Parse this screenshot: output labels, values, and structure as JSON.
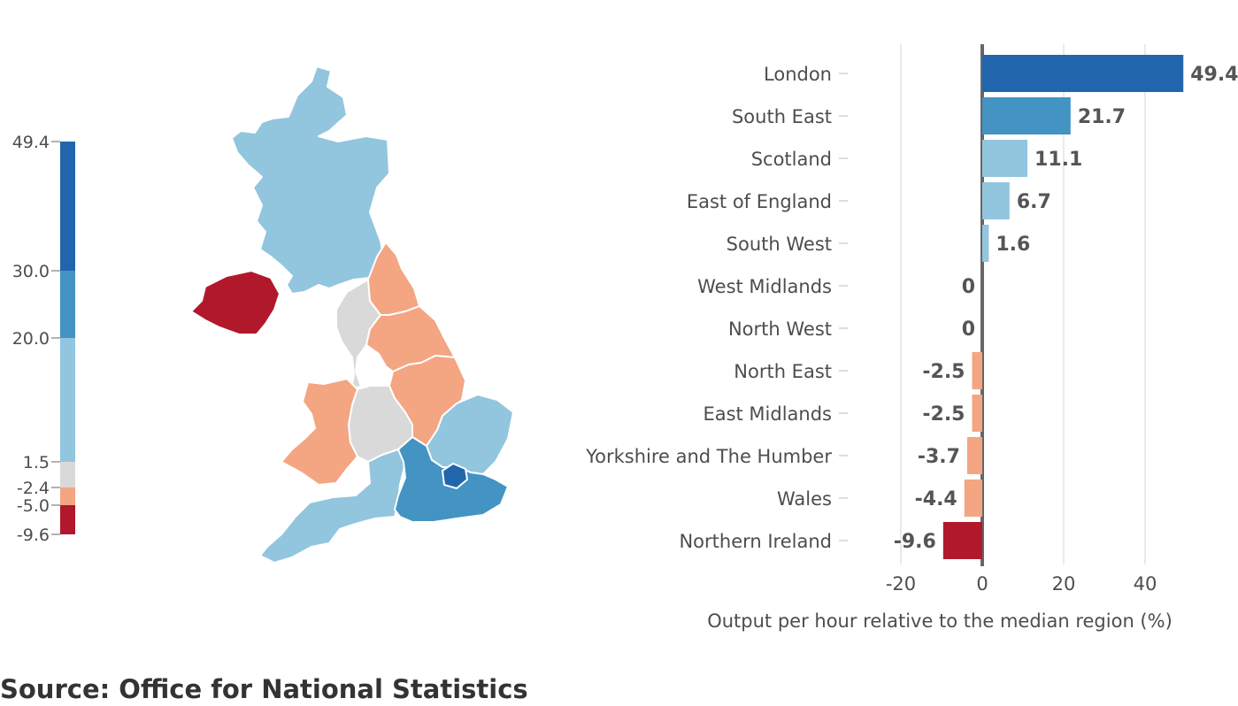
{
  "source_note": "Source: Office for National Statistics",
  "colors": {
    "very_high": "#2166ac",
    "high": "#4393c3",
    "mid_high": "#92c5de",
    "neutral": "#d9d9d9",
    "low": "#f4a582",
    "very_low": "#b2182b",
    "axis": "#666666",
    "grid": "#d4d4d4",
    "text": "#4d4d4d",
    "label": "#555555"
  },
  "legend": {
    "ticks": [
      "49.4",
      "30.0",
      "20.0",
      "1.5",
      "-2.4",
      "-5.0",
      "-9.6"
    ],
    "bands": [
      {
        "from": 30.0,
        "to": 49.4,
        "color": "#2166ac"
      },
      {
        "from": 20.0,
        "to": 30.0,
        "color": "#4393c3"
      },
      {
        "from": 1.5,
        "to": 20.0,
        "color": "#92c5de"
      },
      {
        "from": -2.4,
        "to": 1.5,
        "color": "#d9d9d9"
      },
      {
        "from": -5.0,
        "to": -2.4,
        "color": "#f4a582"
      },
      {
        "from": -9.6,
        "to": -5.0,
        "color": "#b2182b"
      }
    ]
  },
  "map": {
    "regions": [
      {
        "name": "Scotland",
        "color": "#92c5de"
      },
      {
        "name": "Northern Ireland",
        "color": "#b2182b"
      },
      {
        "name": "North West",
        "color": "#d9d9d9"
      },
      {
        "name": "North East",
        "color": "#f4a582"
      },
      {
        "name": "Yorkshire and The Humber",
        "color": "#f4a582"
      },
      {
        "name": "Wales",
        "color": "#f4a582"
      },
      {
        "name": "West Midlands",
        "color": "#d9d9d9"
      },
      {
        "name": "East Midlands",
        "color": "#f4a582"
      },
      {
        "name": "East of England",
        "color": "#92c5de"
      },
      {
        "name": "South West",
        "color": "#92c5de"
      },
      {
        "name": "South East",
        "color": "#4393c3"
      },
      {
        "name": "London",
        "color": "#2166ac"
      }
    ]
  },
  "chart_data": {
    "type": "bar",
    "orientation": "horizontal",
    "xlabel": "Output per hour relative to the median region (%)",
    "xlim": [
      -25,
      50
    ],
    "xticks": [
      -20,
      0,
      20,
      40
    ],
    "grid": true,
    "categories": [
      "London",
      "South East",
      "Scotland",
      "East of England",
      "South West",
      "West Midlands",
      "North West",
      "North East",
      "East Midlands",
      "Yorkshire and The Humber",
      "Wales",
      "Northern Ireland"
    ],
    "values": [
      49.4,
      21.7,
      11.1,
      6.7,
      1.6,
      0,
      0,
      -2.5,
      -2.5,
      -3.7,
      -4.4,
      -9.6
    ],
    "value_labels": [
      "49.4",
      "21.7",
      "11.1",
      "6.7",
      "1.6",
      "0",
      "0",
      "-2.5",
      "-2.5",
      "-3.7",
      "-4.4",
      "-9.6"
    ]
  }
}
